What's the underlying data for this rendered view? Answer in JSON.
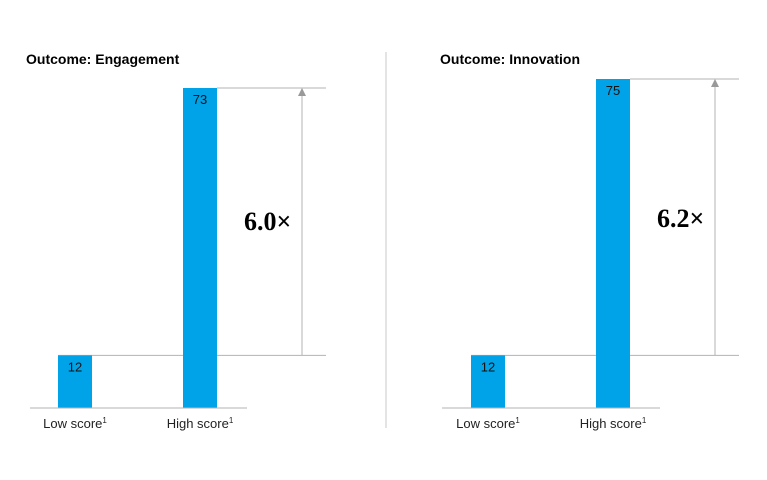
{
  "chart_data": [
    {
      "type": "bar",
      "title": "Outcome: Engagement",
      "categories": [
        "Low score",
        "High score"
      ],
      "category_footnote": "1",
      "values": [
        12,
        73
      ],
      "data_labels": [
        "12",
        "73"
      ],
      "ratio_label": "6.0×",
      "ylim": [
        0,
        73
      ],
      "grid": false
    },
    {
      "type": "bar",
      "title": "Outcome: Innovation",
      "categories": [
        "Low score",
        "High score"
      ],
      "category_footnote": "1",
      "values": [
        12,
        75
      ],
      "data_labels": [
        "12",
        "75"
      ],
      "ratio_label": "6.2×",
      "ylim": [
        0,
        75
      ],
      "grid": false
    }
  ],
  "colors": {
    "bar": "#00a3e8",
    "guide_line": "#b3b3b3",
    "arrow": "#999999",
    "axis": "#b3b3b3",
    "divider": "#c8c8c8"
  }
}
